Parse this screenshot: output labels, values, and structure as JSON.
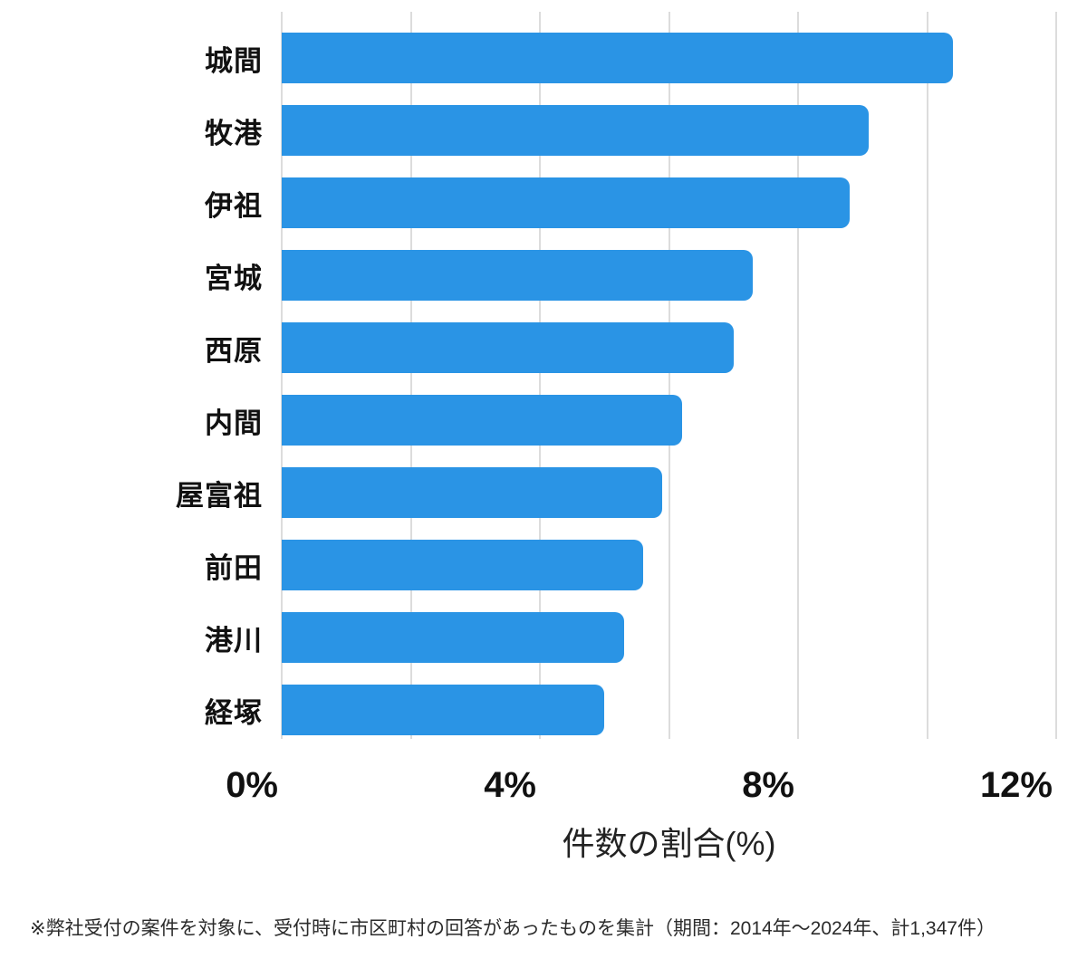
{
  "chart_data": {
    "type": "bar",
    "orientation": "horizontal",
    "title": "",
    "categories": [
      "城間",
      "牧港",
      "伊祖",
      "宮城",
      "西原",
      "内間",
      "屋富祖",
      "前田",
      "港川",
      "経塚"
    ],
    "values": [
      10.4,
      9.1,
      8.8,
      7.3,
      7.0,
      6.2,
      5.9,
      5.6,
      5.3,
      5.0
    ],
    "xlabel": "件数の割合(%)",
    "ylabel": "",
    "xlim": [
      0,
      12
    ],
    "x_ticks": [
      {
        "value": 0,
        "label": "0%"
      },
      {
        "value": 4,
        "label": "4%"
      },
      {
        "value": 8,
        "label": "8%"
      },
      {
        "value": 12,
        "label": "12%"
      }
    ],
    "gridlines_percent": [
      0,
      2,
      4,
      6,
      8,
      10,
      12
    ],
    "grid": true,
    "legend": false,
    "bar_color": "#2a94e5",
    "gridline_color": "#dcdcdc",
    "text_color": "#111111"
  },
  "footnote": "※弊社受付の案件を対象に、受付時に市区町村の回答があったものを集計（期間：2014年～2024年、計1,347件）"
}
